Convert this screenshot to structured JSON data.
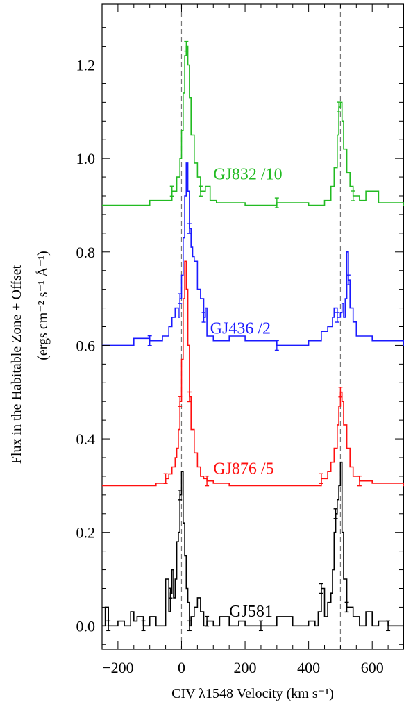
{
  "chart_data": {
    "type": "line",
    "xlabel": "CIV λ1548 Velocity (km s⁻¹)",
    "ylabel_line1": "Flux in the Habitable Zone + Offset",
    "ylabel_line2": "(ergs cm⁻² s⁻¹ Å⁻¹)",
    "xlim": [
      -250,
      700
    ],
    "ylim": [
      -0.05,
      1.33
    ],
    "x_ticks": [
      -200,
      0,
      200,
      400,
      600
    ],
    "x_tick_labels": [
      "−200",
      "0",
      "200",
      "400",
      "600"
    ],
    "y_ticks": [
      0.0,
      0.2,
      0.4,
      0.6,
      0.8,
      1.0,
      1.2
    ],
    "y_tick_labels": [
      "0.0",
      "0.2",
      "0.4",
      "0.6",
      "0.8",
      "1.0",
      "1.2"
    ],
    "reference_lines_x": [
      0,
      500
    ],
    "grid": false,
    "legend": "none",
    "series": [
      {
        "name": "GJ832 /10",
        "color": "#22bb22",
        "label_position": [
          100,
          0.955
        ],
        "x": [
          -250,
          -100,
          -30,
          -15,
          -5,
          0,
          5,
          10,
          15,
          20,
          25,
          30,
          40,
          50,
          60,
          75,
          90,
          110,
          150,
          200,
          300,
          400,
          450,
          470,
          480,
          490,
          495,
          500,
          505,
          510,
          520,
          530,
          540,
          560,
          580,
          620,
          700
        ],
        "y": [
          0.9,
          0.91,
          0.93,
          0.96,
          1.0,
          1.06,
          1.14,
          1.22,
          1.24,
          1.2,
          1.13,
          1.05,
          0.99,
          0.96,
          0.93,
          0.94,
          0.91,
          0.905,
          0.905,
          0.9,
          0.905,
          0.9,
          0.91,
          0.94,
          0.98,
          1.05,
          1.11,
          1.12,
          1.08,
          1.02,
          0.97,
          0.94,
          0.92,
          0.91,
          0.93,
          0.905,
          0.9
        ]
      },
      {
        "name": "GJ436 /2",
        "color": "#1a1aff",
        "label_position": [
          90,
          0.625
        ],
        "x": [
          -250,
          -150,
          -100,
          -60,
          -40,
          -30,
          -20,
          -10,
          -5,
          0,
          5,
          10,
          15,
          20,
          25,
          30,
          35,
          40,
          50,
          60,
          70,
          75,
          80,
          100,
          150,
          200,
          300,
          400,
          440,
          460,
          475,
          480,
          490,
          500,
          505,
          510,
          515,
          520,
          525,
          530,
          540,
          550,
          600,
          700
        ],
        "y": [
          0.6,
          0.615,
          0.61,
          0.62,
          0.64,
          0.66,
          0.68,
          0.66,
          0.7,
          0.75,
          0.83,
          0.92,
          0.99,
          0.93,
          0.85,
          0.81,
          0.79,
          0.78,
          0.72,
          0.7,
          0.66,
          0.68,
          0.62,
          0.61,
          0.62,
          0.61,
          0.6,
          0.61,
          0.63,
          0.64,
          0.66,
          0.68,
          0.66,
          0.67,
          0.69,
          0.66,
          0.7,
          0.8,
          0.74,
          0.68,
          0.65,
          0.62,
          0.61,
          0.6
        ]
      },
      {
        "name": "GJ876 /5",
        "color": "#ff1010",
        "label_position": [
          100,
          0.325
        ],
        "x": [
          -250,
          -80,
          -50,
          -40,
          -30,
          -20,
          -15,
          -10,
          -5,
          0,
          5,
          10,
          15,
          20,
          25,
          30,
          40,
          50,
          60,
          70,
          80,
          100,
          150,
          200,
          300,
          400,
          440,
          460,
          470,
          480,
          490,
          495,
          500,
          505,
          510,
          520,
          530,
          540,
          560,
          600,
          700
        ],
        "y": [
          0.3,
          0.305,
          0.315,
          0.325,
          0.34,
          0.36,
          0.38,
          0.42,
          0.48,
          0.57,
          0.7,
          0.78,
          0.72,
          0.6,
          0.49,
          0.42,
          0.37,
          0.34,
          0.32,
          0.315,
          0.31,
          0.305,
          0.3,
          0.3,
          0.3,
          0.3,
          0.315,
          0.33,
          0.35,
          0.38,
          0.43,
          0.47,
          0.5,
          0.48,
          0.43,
          0.38,
          0.34,
          0.32,
          0.31,
          0.305,
          0.3
        ]
      },
      {
        "name": "GJ581",
        "color": "#000000",
        "label_position": [
          150,
          0.02
        ],
        "x": [
          -250,
          -240,
          -230,
          -200,
          -180,
          -160,
          -150,
          -140,
          -120,
          -100,
          -80,
          -60,
          -50,
          -40,
          -35,
          -30,
          -25,
          -20,
          -15,
          -10,
          -5,
          0,
          5,
          10,
          15,
          20,
          25,
          30,
          40,
          50,
          60,
          70,
          80,
          100,
          120,
          150,
          180,
          200,
          250,
          300,
          350,
          400,
          420,
          430,
          440,
          450,
          460,
          470,
          475,
          480,
          485,
          490,
          495,
          500,
          505,
          510,
          520,
          540,
          560,
          580,
          600,
          620,
          650,
          700
        ],
        "y": [
          0.0,
          0.04,
          0.0,
          0.01,
          0.0,
          0.03,
          0.01,
          0.02,
          0.0,
          0.02,
          0.0,
          0.0,
          0.1,
          0.03,
          0.07,
          0.12,
          0.06,
          0.1,
          0.18,
          0.2,
          0.28,
          0.33,
          0.22,
          0.15,
          0.08,
          0.05,
          0.0,
          0.02,
          0.04,
          0.06,
          0.03,
          0.0,
          0.01,
          0.0,
          0.02,
          0.0,
          0.01,
          0.0,
          0.0,
          0.02,
          0.0,
          0.01,
          0.0,
          0.03,
          0.08,
          0.02,
          0.05,
          0.07,
          0.12,
          0.2,
          0.24,
          0.27,
          0.3,
          0.35,
          0.2,
          0.1,
          0.04,
          0.02,
          0.0,
          0.03,
          0.0,
          0.01,
          0.0,
          0.0
        ]
      }
    ]
  }
}
